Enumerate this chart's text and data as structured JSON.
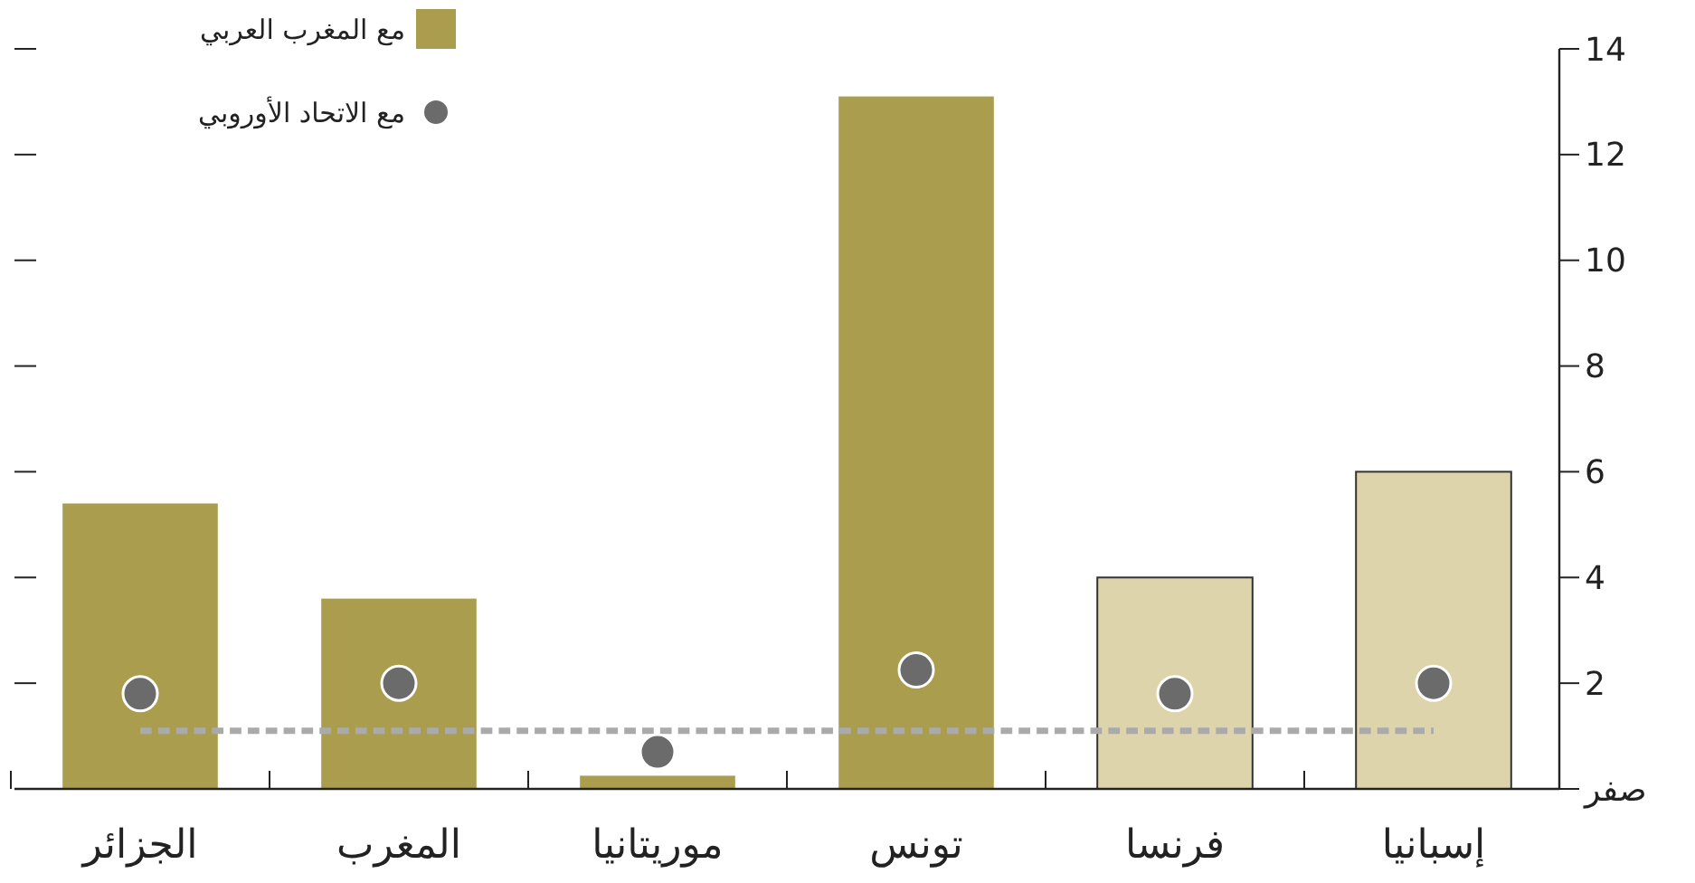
{
  "chart_data": {
    "type": "bar",
    "categories": [
      "الجزائر",
      "المغرب",
      "موريتانيا",
      "تونس",
      "فرنسا",
      "إسبانيا"
    ],
    "series": [
      {
        "name": "مع المغرب العربي",
        "colors": [
          "#aa9e4e",
          "#aa9e4e",
          "#aa9e4e",
          "#aa9e4e",
          "#ddd4ac",
          "#ddd4ac"
        ],
        "color": "#aa9e4e",
        "values": [
          5.4,
          3.6,
          0.25,
          13.1,
          4.0,
          6.0
        ]
      },
      {
        "name": "مع الاتحاد الأوروبي",
        "type": "scatter",
        "color": "#6b6b6b",
        "marker": "circle",
        "values": [
          1.8,
          2.0,
          0.7,
          2.25,
          1.8,
          2.0
        ]
      },
      {
        "type": "line",
        "color": "#aaaaaa",
        "line_style": "dashed",
        "marker": "none",
        "values": [
          1.1,
          1.1,
          1.1,
          1.1,
          1.1,
          1.1
        ]
      }
    ],
    "ylim": [
      0,
      14
    ],
    "yticks": [
      {
        "value": 0,
        "label": "صفر"
      },
      2,
      4,
      6,
      8,
      10,
      12,
      14
    ],
    "grid": false,
    "legend": "top left"
  }
}
